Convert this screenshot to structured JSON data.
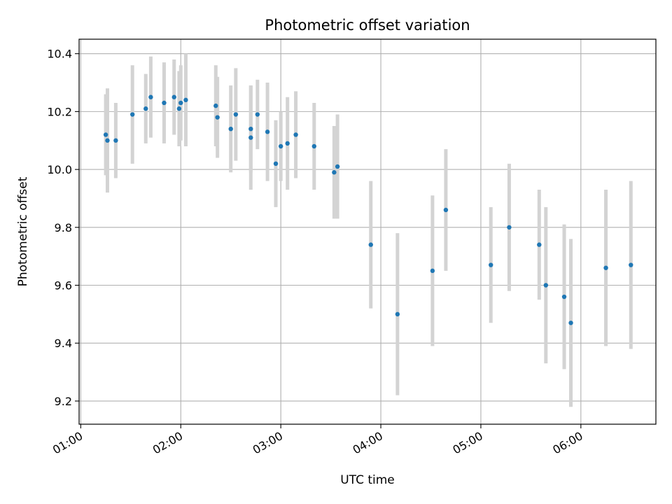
{
  "chart_data": {
    "type": "scatter",
    "title": "Photometric offset variation",
    "xlabel": "UTC time",
    "ylabel": "Photometric offset",
    "x_unit": "HH:MM",
    "xlim": [
      "00:59",
      "06:45"
    ],
    "ylim": [
      9.12,
      10.45
    ],
    "xticks": [
      "01:00",
      "02:00",
      "03:00",
      "04:00",
      "05:00",
      "06:00"
    ],
    "yticks": [
      9.2,
      9.4,
      9.6,
      9.8,
      10.0,
      10.2,
      10.4
    ],
    "grid": true,
    "colors": {
      "point": "#1f77b4",
      "errorbar": "#d3d3d3",
      "grid": "#b0b0b0"
    },
    "points": [
      {
        "x": "01:15",
        "y": 10.12,
        "err": 0.14
      },
      {
        "x": "01:16",
        "y": 10.1,
        "err": 0.18
      },
      {
        "x": "01:21",
        "y": 10.1,
        "err": 0.13
      },
      {
        "x": "01:31",
        "y": 10.19,
        "err": 0.17
      },
      {
        "x": "01:39",
        "y": 10.21,
        "err": 0.12
      },
      {
        "x": "01:42",
        "y": 10.25,
        "err": 0.14
      },
      {
        "x": "01:50",
        "y": 10.23,
        "err": 0.14
      },
      {
        "x": "01:56",
        "y": 10.25,
        "err": 0.13
      },
      {
        "x": "01:59",
        "y": 10.21,
        "err": 0.13
      },
      {
        "x": "02:00",
        "y": 10.23,
        "err": 0.13
      },
      {
        "x": "02:03",
        "y": 10.24,
        "err": 0.16
      },
      {
        "x": "02:21",
        "y": 10.22,
        "err": 0.14
      },
      {
        "x": "02:22",
        "y": 10.18,
        "err": 0.14
      },
      {
        "x": "02:30",
        "y": 10.14,
        "err": 0.15
      },
      {
        "x": "02:33",
        "y": 10.19,
        "err": 0.16
      },
      {
        "x": "02:42",
        "y": 10.14,
        "err": 0.15
      },
      {
        "x": "02:42",
        "y": 10.11,
        "err": 0.18
      },
      {
        "x": "02:46",
        "y": 10.19,
        "err": 0.12
      },
      {
        "x": "02:52",
        "y": 10.13,
        "err": 0.17
      },
      {
        "x": "02:57",
        "y": 10.02,
        "err": 0.15
      },
      {
        "x": "03:00",
        "y": 10.08,
        "err": 0.12
      },
      {
        "x": "03:04",
        "y": 10.09,
        "err": 0.16
      },
      {
        "x": "03:09",
        "y": 10.12,
        "err": 0.15
      },
      {
        "x": "03:20",
        "y": 10.08,
        "err": 0.15
      },
      {
        "x": "03:32",
        "y": 9.99,
        "err": 0.16
      },
      {
        "x": "03:34",
        "y": 10.01,
        "err": 0.18
      },
      {
        "x": "03:54",
        "y": 9.74,
        "err": 0.22
      },
      {
        "x": "04:10",
        "y": 9.5,
        "err": 0.28
      },
      {
        "x": "04:31",
        "y": 9.65,
        "err": 0.26
      },
      {
        "x": "04:39",
        "y": 9.86,
        "err": 0.21
      },
      {
        "x": "05:06",
        "y": 9.67,
        "err": 0.2
      },
      {
        "x": "05:17",
        "y": 9.8,
        "err": 0.22
      },
      {
        "x": "05:35",
        "y": 9.74,
        "err": 0.19
      },
      {
        "x": "05:39",
        "y": 9.6,
        "err": 0.27
      },
      {
        "x": "05:50",
        "y": 9.56,
        "err": 0.25
      },
      {
        "x": "05:54",
        "y": 9.47,
        "err": 0.29
      },
      {
        "x": "06:15",
        "y": 9.66,
        "err": 0.27
      },
      {
        "x": "06:30",
        "y": 9.67,
        "err": 0.29
      }
    ]
  }
}
